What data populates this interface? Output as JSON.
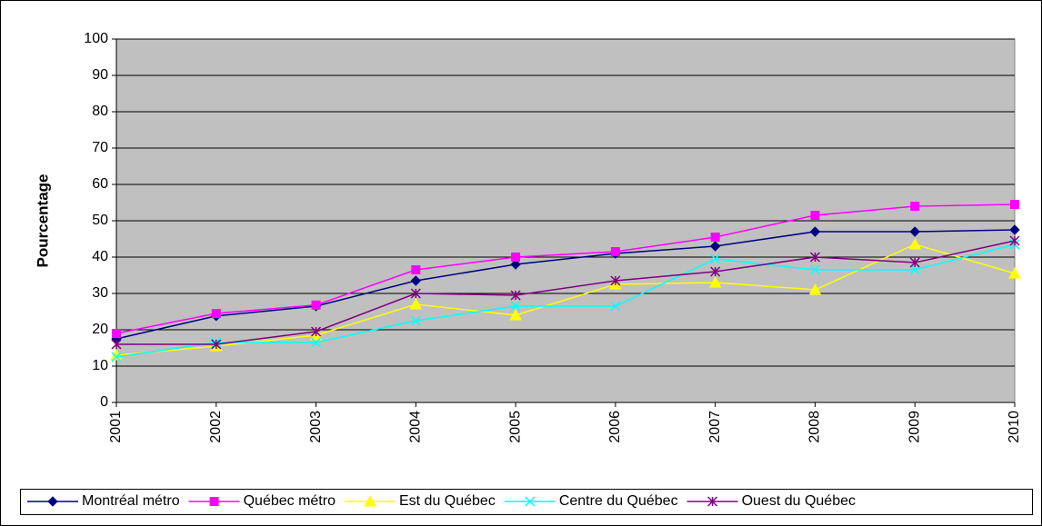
{
  "chart_data": {
    "type": "line",
    "y_label": "Pourcentage",
    "categories": [
      "2001",
      "2002",
      "2003",
      "2004",
      "2005",
      "2006",
      "2007",
      "2008",
      "2009",
      "2010"
    ],
    "ylim": [
      0,
      100
    ],
    "yticks": [
      0,
      10,
      20,
      30,
      40,
      50,
      60,
      70,
      80,
      90,
      100
    ],
    "grid": true,
    "legend": "bottom",
    "series": [
      {
        "name": "Montréal métro",
        "color": "#000080",
        "marker": "diamond",
        "values": [
          17.5,
          23.8,
          26.5,
          33.5,
          38,
          41,
          43,
          47,
          47,
          47.5
        ]
      },
      {
        "name": "Québec métro",
        "color": "#ff00ff",
        "marker": "square",
        "values": [
          19,
          24.5,
          26.8,
          36.5,
          40,
          41.5,
          45.5,
          51.5,
          54,
          54.5
        ]
      },
      {
        "name": "Est du Québec",
        "color": "#ffff00",
        "marker": "triangle",
        "values": [
          13,
          15.5,
          18.5,
          27,
          24,
          32.5,
          33,
          31,
          43.5,
          35.5
        ]
      },
      {
        "name": "Centre du Québec",
        "color": "#00ffff",
        "marker": "x",
        "values": [
          12.5,
          16.5,
          16.5,
          22.5,
          26.5,
          26.5,
          39.5,
          36.5,
          36.5,
          43.5
        ]
      },
      {
        "name": "Ouest du Québec",
        "color": "#800080",
        "marker": "star",
        "values": [
          16,
          16,
          19.5,
          30,
          29.5,
          33.5,
          36,
          40,
          38.5,
          44.5
        ]
      }
    ]
  }
}
